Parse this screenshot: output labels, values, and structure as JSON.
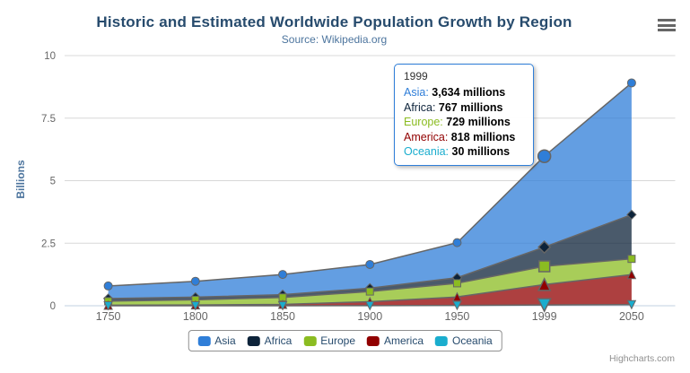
{
  "chart_data": {
    "type": "area",
    "stacking": "normal",
    "title": "Historic and Estimated Worldwide Population Growth by Region",
    "subtitle": "Source: Wikipedia.org",
    "categories": [
      "1750",
      "1800",
      "1850",
      "1900",
      "1950",
      "1999",
      "2050"
    ],
    "xlabel": "",
    "ylabel": "Billions",
    "ylim": [
      0,
      10
    ],
    "yticks": [
      "0",
      "2.5",
      "5",
      "7.5",
      "10"
    ],
    "ytick_values": [
      0,
      2.5,
      5,
      7.5,
      10
    ],
    "values_unit": "millions",
    "grid": true,
    "legend_position": "bottom",
    "hovered_category": "1999",
    "fill_opacity": 0.75,
    "line_color": "#666666",
    "series": [
      {
        "name": "Asia",
        "color": "#2f7ed8",
        "marker": "circle",
        "values": [
          502,
          635,
          809,
          947,
          1402,
          3634,
          5268
        ]
      },
      {
        "name": "Africa",
        "color": "#0d233a",
        "marker": "diamond",
        "values": [
          106,
          107,
          111,
          133,
          221,
          767,
          1766
        ]
      },
      {
        "name": "Europe",
        "color": "#8bbc21",
        "marker": "square",
        "values": [
          163,
          203,
          276,
          408,
          547,
          729,
          628
        ]
      },
      {
        "name": "America",
        "color": "#910000",
        "marker": "triangle",
        "values": [
          18,
          31,
          54,
          156,
          339,
          818,
          1201
        ]
      },
      {
        "name": "Oceania",
        "color": "#1aadce",
        "marker": "triangle-down",
        "values": [
          2,
          2,
          2,
          6,
          13,
          30,
          46
        ]
      }
    ],
    "stack_order_bottom_to_top": [
      "Oceania",
      "America",
      "Europe",
      "Africa",
      "Asia"
    ]
  },
  "tooltip": {
    "header": "1999",
    "border_color": "#2f7ed8",
    "rows": [
      {
        "name": "Asia",
        "value": "3,634 millions",
        "color": "#2f7ed8"
      },
      {
        "name": "Africa",
        "value": "767 millions",
        "color": "#0d233a"
      },
      {
        "name": "Europe",
        "value": "729 millions",
        "color": "#8bbc21"
      },
      {
        "name": "America",
        "value": "818 millions",
        "color": "#910000"
      },
      {
        "name": "Oceania",
        "value": "30 millions",
        "color": "#1aadce"
      }
    ]
  },
  "credits": {
    "label": "Highcharts.com"
  },
  "theme": {
    "title_color": "#274b6d",
    "subtitle_color": "#4d759e",
    "axis_title_color": "#4d759e",
    "axis_label_color": "#666666",
    "grid_color": "#d8d8d8",
    "axis_line_color": "#c0d0e0",
    "legend_border_color": "#909090",
    "credits_color": "#909090",
    "menu_icon_color": "#666666"
  }
}
